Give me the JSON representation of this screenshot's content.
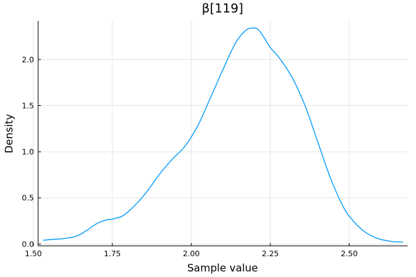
{
  "chart_data": {
    "type": "line",
    "title": "β[119]",
    "xlabel": "Sample value",
    "ylabel": "Density",
    "xlim": [
      1.515,
      2.685
    ],
    "ylim": [
      -0.02,
      2.42
    ],
    "xticks": [
      1.5,
      1.75,
      2.0,
      2.25,
      2.5
    ],
    "xtick_labels": [
      "1.50",
      "1.75",
      "2.00",
      "2.25",
      "2.50"
    ],
    "yticks": [
      0.0,
      0.5,
      1.0,
      1.5,
      2.0
    ],
    "ytick_labels": [
      "0.0",
      "0.5",
      "1.0",
      "1.5",
      "2.0"
    ],
    "grid": true,
    "legend": "none",
    "series": [
      {
        "color": "#009af9",
        "x": [
          1.53,
          1.56,
          1.6,
          1.64,
          1.67,
          1.7,
          1.73,
          1.75,
          1.78,
          1.8,
          1.83,
          1.86,
          1.9,
          1.94,
          1.98,
          2.02,
          2.06,
          2.1,
          2.14,
          2.17,
          2.19,
          2.21,
          2.23,
          2.25,
          2.28,
          2.32,
          2.36,
          2.4,
          2.44,
          2.48,
          2.51,
          2.55,
          2.59,
          2.63,
          2.67
        ],
        "y": [
          0.04,
          0.05,
          0.06,
          0.09,
          0.15,
          0.22,
          0.26,
          0.27,
          0.3,
          0.35,
          0.45,
          0.57,
          0.76,
          0.92,
          1.06,
          1.28,
          1.58,
          1.89,
          2.18,
          2.31,
          2.34,
          2.33,
          2.24,
          2.13,
          2.01,
          1.8,
          1.5,
          1.11,
          0.72,
          0.41,
          0.26,
          0.13,
          0.06,
          0.03,
          0.02
        ]
      }
    ]
  }
}
